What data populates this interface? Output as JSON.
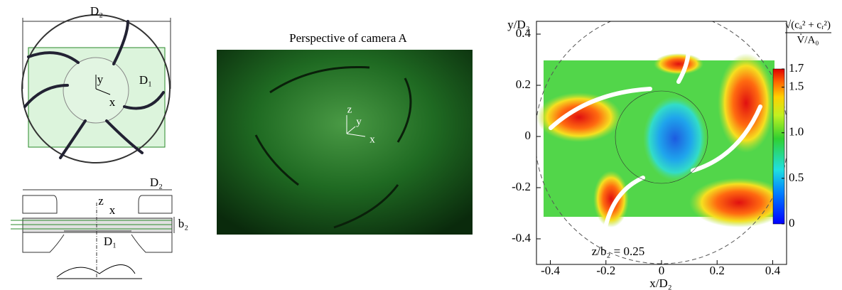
{
  "schematic_top": {
    "labels": {
      "d2": "D₂",
      "d1": "D₁",
      "y": "y",
      "x": "x"
    }
  },
  "schematic_bottom": {
    "labels": {
      "d2": "D₂",
      "z": "z",
      "x": "x",
      "b2": "b₂",
      "d1": "D₁"
    }
  },
  "photo": {
    "title": "Perspective of camera A",
    "axes": {
      "z": "z",
      "y": "y",
      "x": "x"
    }
  },
  "contour_plot": {
    "xlabel": "x/D₂",
    "ylabel": "y/D₂",
    "xlim": [
      -0.45,
      0.45
    ],
    "ylim": [
      -0.5,
      0.45
    ],
    "xticks": [
      -0.4,
      -0.2,
      0,
      0.2,
      0.4
    ],
    "yticks": [
      -0.4,
      -0.2,
      0,
      0.2,
      0.4
    ],
    "annotation": "z/b₂ = 0.25",
    "colorbar": {
      "label_numerator": "√(cₐ² + cᵣ²)",
      "label_denominator": "V̇/A₀",
      "lim": [
        0,
        1.7
      ],
      "ticks": [
        {
          "value": 1.7,
          "label": "1.7"
        },
        {
          "value": 1.5,
          "label": "1.5"
        },
        {
          "value": 1,
          "label": "1.0"
        },
        {
          "value": 0.5,
          "label": "0.5"
        },
        {
          "value": 0,
          "label": "0"
        }
      ]
    }
  }
}
